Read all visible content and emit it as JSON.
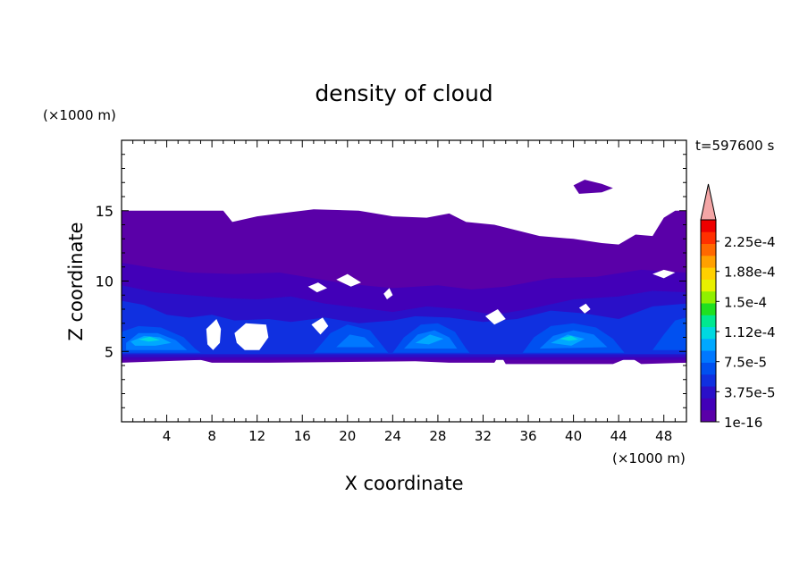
{
  "chart_data": {
    "type": "contour",
    "title": "density of cloud",
    "time_label": "t=597600 s",
    "xlabel": "X coordinate",
    "ylabel": "Z coordinate",
    "x_unit": "(×1000 m)",
    "y_unit": "(×1000 m)",
    "xlim": [
      0,
      50
    ],
    "ylim": [
      0,
      20
    ],
    "x_ticks": [
      4,
      8,
      12,
      16,
      20,
      24,
      28,
      32,
      36,
      40,
      44,
      48
    ],
    "y_ticks": [
      5,
      10,
      15
    ],
    "colorbar": {
      "labels": [
        "2.25e-4",
        "1.88e-4",
        "1.5e-4",
        "1.12e-4",
        "7.5e-5",
        "3.75e-5",
        "1e-16"
      ],
      "levels": [
        "#5a00a8",
        "#4200b8",
        "#2a10c8",
        "#1030e0",
        "#0050f0",
        "#0078ff",
        "#00a8ff",
        "#00d8e0",
        "#00e890",
        "#20e020",
        "#90f000",
        "#e8f000",
        "#ffd000",
        "#ffa000",
        "#ff6800",
        "#ff3000",
        "#ee0000"
      ],
      "over_color": "#f4a6a6"
    },
    "contour_shapes": [
      {
        "level": 0,
        "points": [
          [
            0,
            15
          ],
          [
            9,
            15
          ],
          [
            9.8,
            14.2
          ],
          [
            12,
            14.6
          ],
          [
            14,
            14.8
          ],
          [
            17,
            15.1
          ],
          [
            21,
            15
          ],
          [
            24,
            14.6
          ],
          [
            27,
            14.5
          ],
          [
            29,
            14.8
          ],
          [
            30.5,
            14.2
          ],
          [
            33,
            14
          ],
          [
            35.5,
            13.5
          ],
          [
            37,
            13.2
          ],
          [
            40,
            13
          ],
          [
            42.5,
            12.7
          ],
          [
            44,
            12.6
          ],
          [
            45.5,
            13.3
          ],
          [
            47,
            13.2
          ],
          [
            48,
            14.5
          ],
          [
            49,
            15
          ],
          [
            50,
            15
          ],
          [
            50,
            4.2
          ],
          [
            46,
            4.1
          ],
          [
            45,
            4.6
          ],
          [
            43.5,
            4.1
          ],
          [
            34,
            4.1
          ],
          [
            33.5,
            4.8
          ],
          [
            33,
            4.2
          ],
          [
            29,
            4.2
          ],
          [
            26,
            4.3
          ],
          [
            13,
            4.2
          ],
          [
            8,
            4.2
          ],
          [
            7,
            4.4
          ],
          [
            0,
            4.2
          ]
        ]
      },
      {
        "level": 0,
        "points": [
          [
            40,
            16.8
          ],
          [
            41,
            17.2
          ],
          [
            42.5,
            16.9
          ],
          [
            43.5,
            16.6
          ],
          [
            42.5,
            16.3
          ],
          [
            40.5,
            16.2
          ]
        ]
      },
      {
        "level": 1,
        "points": [
          [
            0,
            11.3
          ],
          [
            3,
            10.9
          ],
          [
            6,
            10.6
          ],
          [
            10,
            10.5
          ],
          [
            14,
            10.6
          ],
          [
            17,
            10.2
          ],
          [
            20,
            9.8
          ],
          [
            24,
            9.5
          ],
          [
            28,
            9.7
          ],
          [
            31,
            9.4
          ],
          [
            34,
            9.6
          ],
          [
            38,
            10.2
          ],
          [
            42,
            10.3
          ],
          [
            46,
            10.8
          ],
          [
            50,
            10.6
          ],
          [
            50,
            4.4
          ],
          [
            0,
            4.4
          ]
        ]
      },
      {
        "level": 2,
        "points": [
          [
            0,
            9.7
          ],
          [
            3,
            9.2
          ],
          [
            6,
            9
          ],
          [
            9,
            8.8
          ],
          [
            12,
            8.7
          ],
          [
            15,
            8.9
          ],
          [
            18,
            8.4
          ],
          [
            21,
            8.1
          ],
          [
            24,
            7.8
          ],
          [
            27,
            8.2
          ],
          [
            30,
            8
          ],
          [
            33,
            7.6
          ],
          [
            36,
            8
          ],
          [
            40,
            8.7
          ],
          [
            44,
            8.9
          ],
          [
            47,
            9.3
          ],
          [
            50,
            9.2
          ],
          [
            50,
            4.6
          ],
          [
            0,
            4.6
          ]
        ]
      },
      {
        "level": 3,
        "points": [
          [
            0,
            8.6
          ],
          [
            2,
            8.3
          ],
          [
            4,
            7.6
          ],
          [
            6,
            7.4
          ],
          [
            8,
            7.6
          ],
          [
            10,
            7.2
          ],
          [
            13,
            7.3
          ],
          [
            15,
            7.1
          ],
          [
            18,
            7.4
          ],
          [
            21,
            7
          ],
          [
            24,
            7.2
          ],
          [
            26,
            7.5
          ],
          [
            29,
            7.4
          ],
          [
            32,
            7.1
          ],
          [
            35,
            7.3
          ],
          [
            38,
            7.9
          ],
          [
            41,
            7.7
          ],
          [
            44,
            7.3
          ],
          [
            47,
            8.2
          ],
          [
            50,
            8.4
          ],
          [
            50,
            4.8
          ],
          [
            0,
            4.8
          ]
        ]
      },
      {
        "level": 4,
        "points": [
          [
            0,
            6.4
          ],
          [
            1.5,
            6.8
          ],
          [
            3.5,
            6.7
          ],
          [
            5.5,
            6
          ],
          [
            6.5,
            5.2
          ],
          [
            7,
            4.9
          ],
          [
            0,
            4.9
          ]
        ]
      },
      {
        "level": 4,
        "points": [
          [
            17,
            4.9
          ],
          [
            18.5,
            6.3
          ],
          [
            20,
            6.9
          ],
          [
            22,
            6.5
          ],
          [
            23.2,
            5.3
          ],
          [
            23.6,
            4.9
          ]
        ]
      },
      {
        "level": 4,
        "points": [
          [
            24,
            4.9
          ],
          [
            25,
            6
          ],
          [
            26.5,
            6.9
          ],
          [
            28,
            7
          ],
          [
            29.5,
            6.4
          ],
          [
            30.5,
            5.2
          ],
          [
            30.8,
            4.9
          ]
        ]
      },
      {
        "level": 4,
        "points": [
          [
            35.5,
            4.9
          ],
          [
            36.5,
            6
          ],
          [
            38,
            6.8
          ],
          [
            40,
            7
          ],
          [
            42,
            6.7
          ],
          [
            43.5,
            5.9
          ],
          [
            44.5,
            4.9
          ]
        ]
      },
      {
        "level": 4,
        "points": [
          [
            47,
            5.1
          ],
          [
            48,
            6.2
          ],
          [
            49,
            7.2
          ],
          [
            50,
            7.4
          ],
          [
            50,
            5.1
          ]
        ]
      },
      {
        "level": 5,
        "points": [
          [
            0.4,
            5.6
          ],
          [
            1.5,
            6.3
          ],
          [
            3.2,
            6.3
          ],
          [
            4.8,
            5.8
          ],
          [
            5.8,
            5.1
          ],
          [
            0.4,
            5.1
          ]
        ]
      },
      {
        "level": 5,
        "points": [
          [
            25,
            5.2
          ],
          [
            26.2,
            6.2
          ],
          [
            27.7,
            6.5
          ],
          [
            29,
            6
          ],
          [
            29.7,
            5.2
          ]
        ]
      },
      {
        "level": 5,
        "points": [
          [
            37,
            5.2
          ],
          [
            38.2,
            6.1
          ],
          [
            40,
            6.5
          ],
          [
            41.8,
            6.2
          ],
          [
            43,
            5.3
          ]
        ]
      },
      {
        "level": 5,
        "points": [
          [
            19,
            5.3
          ],
          [
            20.2,
            6.2
          ],
          [
            21.5,
            6
          ],
          [
            22.4,
            5.3
          ]
        ]
      },
      {
        "level": 6,
        "points": [
          [
            0.8,
            5.7
          ],
          [
            2,
            6.1
          ],
          [
            3.4,
            6
          ],
          [
            4.4,
            5.6
          ],
          [
            3,
            5.4
          ],
          [
            1.2,
            5.4
          ]
        ]
      },
      {
        "level": 6,
        "points": [
          [
            26,
            5.6
          ],
          [
            27.3,
            6.2
          ],
          [
            28.5,
            5.9
          ],
          [
            27.2,
            5.5
          ]
        ]
      },
      {
        "level": 6,
        "points": [
          [
            38,
            5.6
          ],
          [
            39.5,
            6.2
          ],
          [
            41,
            5.9
          ],
          [
            39.8,
            5.4
          ]
        ]
      },
      {
        "level": 7,
        "points": [
          [
            1.5,
            5.85
          ],
          [
            2.5,
            6.05
          ],
          [
            3.4,
            5.8
          ],
          [
            2.4,
            5.7
          ]
        ]
      },
      {
        "level": 7,
        "points": [
          [
            38.8,
            5.9
          ],
          [
            39.8,
            6.1
          ],
          [
            40.4,
            5.85
          ],
          [
            39.6,
            5.75
          ]
        ]
      }
    ],
    "holes": [
      {
        "points": [
          [
            7.5,
            6.6
          ],
          [
            8.4,
            7.3
          ],
          [
            8.8,
            6.6
          ],
          [
            8.7,
            5.6
          ],
          [
            8.1,
            5.1
          ],
          [
            7.6,
            5.5
          ]
        ]
      },
      {
        "points": [
          [
            10,
            6.3
          ],
          [
            11,
            7
          ],
          [
            12.8,
            6.9
          ],
          [
            13,
            6
          ],
          [
            12.2,
            5.1
          ],
          [
            10.9,
            5.1
          ],
          [
            10.2,
            5.6
          ]
        ]
      },
      {
        "points": [
          [
            16.8,
            6.9
          ],
          [
            17.8,
            7.4
          ],
          [
            18.3,
            6.8
          ],
          [
            17.6,
            6.2
          ]
        ]
      },
      {
        "points": [
          [
            16.5,
            9.6
          ],
          [
            17.4,
            9.9
          ],
          [
            18.2,
            9.5
          ],
          [
            17.3,
            9.2
          ]
        ]
      },
      {
        "points": [
          [
            19,
            10.1
          ],
          [
            20,
            10.5
          ],
          [
            21.2,
            9.9
          ],
          [
            20.3,
            9.6
          ]
        ]
      },
      {
        "points": [
          [
            23.2,
            9.1
          ],
          [
            23.7,
            9.5
          ],
          [
            24,
            9
          ],
          [
            23.5,
            8.7
          ]
        ]
      },
      {
        "points": [
          [
            32.2,
            7.5
          ],
          [
            33.3,
            8
          ],
          [
            34,
            7.3
          ],
          [
            33,
            6.9
          ]
        ]
      },
      {
        "points": [
          [
            40.5,
            8.1
          ],
          [
            41.1,
            8.4
          ],
          [
            41.5,
            8
          ],
          [
            41,
            7.7
          ]
        ]
      },
      {
        "points": [
          [
            47,
            10.5
          ],
          [
            48,
            10.8
          ],
          [
            49,
            10.6
          ],
          [
            48,
            10.2
          ]
        ]
      }
    ],
    "grid": false
  }
}
